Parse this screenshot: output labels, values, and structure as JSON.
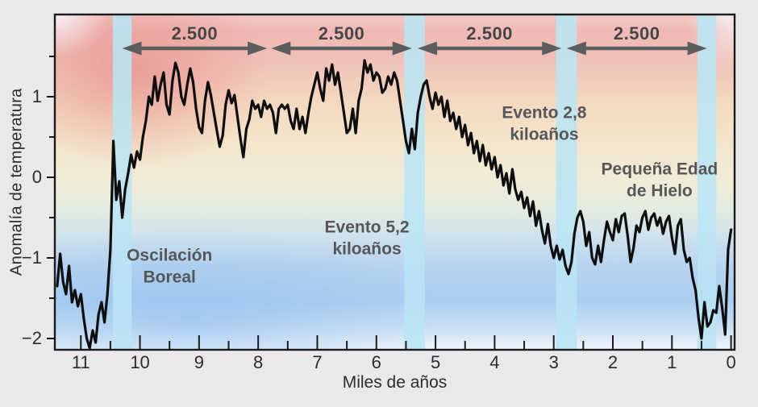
{
  "figure": {
    "background": "#e9e9ec",
    "frame_color": "#1b1b1b"
  },
  "axes": {
    "y": {
      "title": "Anomalía de temperatura",
      "major_ticks": [
        {
          "value": 1,
          "label": "1"
        },
        {
          "value": 0,
          "label": "0"
        },
        {
          "value": -1,
          "label": "−1"
        },
        {
          "value": -2,
          "label": "−2"
        }
      ],
      "minor_ticks": [
        1.5,
        0.5,
        -0.5,
        -1.5
      ]
    },
    "x": {
      "title": "Miles de años",
      "major_ticks": [
        {
          "value": 11,
          "label": "11"
        },
        {
          "value": 10,
          "label": "10"
        },
        {
          "value": 9,
          "label": "9"
        },
        {
          "value": 8,
          "label": "8"
        },
        {
          "value": 7,
          "label": "7"
        },
        {
          "value": 6,
          "label": "6"
        },
        {
          "value": 5,
          "label": "5"
        },
        {
          "value": 4,
          "label": "4"
        },
        {
          "value": 3,
          "label": "3"
        },
        {
          "value": 2,
          "label": "2"
        },
        {
          "value": 1,
          "label": "1"
        },
        {
          "value": 0,
          "label": "0"
        }
      ],
      "minor_ticks": [
        10.5,
        9.5,
        8.5,
        7.5,
        6.5,
        5.5,
        4.5,
        3.5,
        2.5,
        1.5,
        0.5
      ]
    }
  },
  "events": {
    "band_color": "rgba(186,229,244,0.88)",
    "bands": [
      {
        "name": "evento-10-3",
        "from_ka": 10.46,
        "to_ka": 10.14
      },
      {
        "name": "evento-5-2",
        "from_ka": 5.53,
        "to_ka": 5.18
      },
      {
        "name": "evento-2-8",
        "from_ka": 2.96,
        "to_ka": 2.61
      },
      {
        "name": "pequena-edad-hielo",
        "from_ka": 0.57,
        "to_ka": 0.25
      }
    ]
  },
  "intervals": {
    "label": "2.500",
    "arrow_color": "#5c5d5f",
    "y_anomaly": 1.6,
    "spans": [
      {
        "from_ka": 10.3,
        "to_ka": 7.85
      },
      {
        "from_ka": 7.78,
        "to_ka": 5.4
      },
      {
        "from_ka": 5.3,
        "to_ka": 2.87
      },
      {
        "from_ka": 2.78,
        "to_ka": 0.41
      }
    ]
  },
  "annotations": [
    {
      "id": "oscilacion-boreal",
      "lines": [
        "Oscilación",
        "Boreal"
      ],
      "ka": 9.5,
      "anomaly": -1.1
    },
    {
      "id": "evento-5-2-label",
      "lines": [
        "Evento 5,2",
        "kiloaños"
      ],
      "ka": 6.16,
      "anomaly": -0.75
    },
    {
      "id": "evento-2-8-label",
      "lines": [
        "Evento 2,8",
        "kiloaños"
      ],
      "ka": 3.16,
      "anomaly": 0.67
    },
    {
      "id": "pequena-edad-label",
      "lines": [
        "Pequeña Edad",
        "de Hielo"
      ],
      "ka": 1.21,
      "anomaly": -0.03
    }
  ],
  "chart_data": {
    "type": "line",
    "title": "",
    "xlabel": "Miles de años",
    "ylabel": "Anomalía de temperatura",
    "xlim": [
      11.44,
      -0.06
    ],
    "ylim": [
      -2.14,
      2.02
    ],
    "x_start": 11.4,
    "x_step": -0.05,
    "series": [
      {
        "name": "Anomalía de temperatura",
        "color": "#0e0e0e",
        "values": [
          -1.35,
          -0.95,
          -1.3,
          -1.45,
          -1.1,
          -1.55,
          -1.4,
          -1.6,
          -1.45,
          -1.75,
          -2.0,
          -2.12,
          -1.9,
          -2.05,
          -1.7,
          -1.55,
          -1.8,
          -1.45,
          -0.9,
          0.45,
          -0.28,
          -0.05,
          -0.5,
          -0.15,
          0.05,
          0.28,
          0.12,
          0.32,
          0.22,
          0.5,
          0.7,
          1.0,
          0.9,
          1.25,
          0.95,
          1.15,
          1.3,
          0.9,
          0.78,
          1.2,
          1.42,
          1.3,
          1.0,
          0.9,
          1.15,
          1.35,
          1.18,
          0.85,
          0.62,
          0.55,
          0.95,
          1.18,
          1.02,
          0.8,
          0.58,
          0.38,
          0.52,
          0.9,
          1.08,
          0.92,
          1.02,
          0.75,
          0.48,
          0.25,
          0.6,
          0.72,
          0.95,
          0.85,
          0.9,
          0.75,
          0.95,
          0.85,
          0.9,
          0.8,
          0.55,
          0.85,
          0.9,
          0.85,
          0.9,
          0.7,
          0.6,
          0.85,
          0.6,
          0.75,
          0.55,
          0.8,
          1.0,
          1.15,
          1.3,
          1.1,
          0.95,
          1.35,
          1.2,
          1.4,
          1.15,
          1.3,
          1.05,
          0.8,
          0.55,
          0.6,
          0.85,
          0.55,
          0.95,
          1.1,
          1.45,
          1.3,
          1.4,
          1.2,
          1.3,
          1.25,
          1.05,
          1.1,
          1.25,
          1.15,
          1.3,
          1.2,
          0.95,
          0.7,
          0.45,
          0.3,
          0.6,
          0.35,
          0.8,
          1.0,
          1.15,
          1.2,
          1.0,
          0.85,
          1.05,
          0.9,
          1.0,
          0.75,
          0.95,
          0.7,
          0.8,
          0.6,
          0.75,
          0.5,
          0.65,
          0.4,
          0.55,
          0.3,
          0.45,
          0.2,
          0.4,
          0.15,
          0.3,
          0.1,
          0.25,
          0.0,
          0.15,
          -0.1,
          0.05,
          -0.2,
          0.1,
          -0.15,
          -0.28,
          -0.18,
          -0.38,
          -0.25,
          -0.48,
          -0.3,
          -0.6,
          -0.42,
          -0.65,
          -0.82,
          -0.58,
          -0.85,
          -1.0,
          -0.85,
          -1.02,
          -0.9,
          -1.1,
          -1.2,
          -1.05,
          -0.7,
          -0.5,
          -0.42,
          -0.55,
          -0.85,
          -0.68,
          -1.0,
          -1.08,
          -0.85,
          -1.05,
          -0.78,
          -0.55,
          -0.68,
          -0.78,
          -0.52,
          -0.68,
          -0.48,
          -0.45,
          -0.72,
          -1.05,
          -0.88,
          -0.6,
          -0.68,
          -0.5,
          -0.42,
          -0.65,
          -0.5,
          -0.45,
          -0.6,
          -0.5,
          -0.7,
          -0.55,
          -0.48,
          -0.75,
          -0.95,
          -0.6,
          -0.52,
          -0.9,
          -1.05,
          -1.0,
          -1.25,
          -1.4,
          -1.75,
          -2.0,
          -1.55,
          -1.85,
          -1.8,
          -1.65,
          -1.68,
          -1.35,
          -1.62,
          -1.95,
          -0.9,
          -0.65
        ]
      }
    ]
  }
}
